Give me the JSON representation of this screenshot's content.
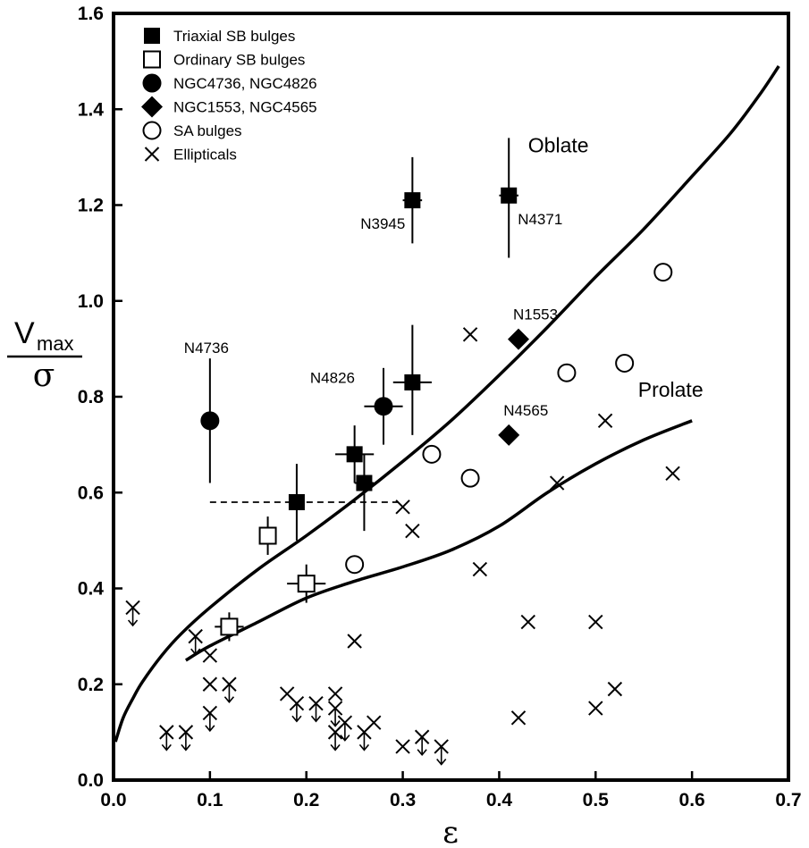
{
  "chart_data": {
    "type": "scatter",
    "title": "",
    "xlabel": "ε",
    "ylabel": {
      "main": "V",
      "subscript": "max",
      "denominator": "σ"
    },
    "xlim": [
      0.0,
      0.7
    ],
    "ylim": [
      0.0,
      1.6
    ],
    "x_ticks": [
      "0.0",
      "0.1",
      "0.2",
      "0.3",
      "0.4",
      "0.5",
      "0.6",
      "0.7"
    ],
    "y_ticks": [
      "0.0",
      "0.2",
      "0.4",
      "0.6",
      "0.8",
      "1.0",
      "1.2",
      "1.4",
      "1.6"
    ],
    "legend_position": "top-left",
    "legend": [
      {
        "marker": "filled-square",
        "label": "Triaxial SB bulges"
      },
      {
        "marker": "open-square",
        "label": "Ordinary SB bulges"
      },
      {
        "marker": "filled-circle",
        "label": "NGC4736, NGC4826"
      },
      {
        "marker": "filled-diamond",
        "label": "NGC1553, NGC4565"
      },
      {
        "marker": "open-circle",
        "label": "SA bulges"
      },
      {
        "marker": "cross",
        "label": "Ellipticals"
      }
    ],
    "curves": [
      {
        "name": "Oblate",
        "label": "Oblate",
        "label_at": [
          0.43,
          1.31
        ],
        "points": [
          [
            0.002,
            0.08
          ],
          [
            0.01,
            0.13
          ],
          [
            0.02,
            0.17
          ],
          [
            0.03,
            0.205
          ],
          [
            0.05,
            0.26
          ],
          [
            0.07,
            0.305
          ],
          [
            0.1,
            0.36
          ],
          [
            0.15,
            0.44
          ],
          [
            0.2,
            0.51
          ],
          [
            0.25,
            0.585
          ],
          [
            0.3,
            0.665
          ],
          [
            0.35,
            0.75
          ],
          [
            0.4,
            0.845
          ],
          [
            0.45,
            0.945
          ],
          [
            0.5,
            1.05
          ],
          [
            0.55,
            1.15
          ],
          [
            0.6,
            1.26
          ],
          [
            0.64,
            1.35
          ],
          [
            0.67,
            1.43
          ],
          [
            0.69,
            1.49
          ]
        ]
      },
      {
        "name": "Prolate",
        "label": "Prolate",
        "label_at": [
          0.544,
          0.8
        ],
        "points": [
          [
            0.075,
            0.25
          ],
          [
            0.1,
            0.28
          ],
          [
            0.15,
            0.33
          ],
          [
            0.2,
            0.38
          ],
          [
            0.25,
            0.415
          ],
          [
            0.3,
            0.445
          ],
          [
            0.35,
            0.48
          ],
          [
            0.4,
            0.53
          ],
          [
            0.45,
            0.6
          ],
          [
            0.5,
            0.66
          ],
          [
            0.55,
            0.71
          ],
          [
            0.6,
            0.75
          ]
        ]
      }
    ],
    "dashed_line": {
      "x": [
        0.1,
        0.3
      ],
      "y": 0.58
    },
    "series": [
      {
        "name": "Triaxial SB bulges",
        "marker": "filled-square",
        "points": [
          {
            "x": 0.31,
            "y": 1.21,
            "xerr": 0.01,
            "yerr": [
              0.09,
              0.09
            ],
            "label": "N3945"
          },
          {
            "x": 0.41,
            "y": 1.22,
            "xerr": 0.01,
            "yerr": [
              0.13,
              0.12
            ],
            "label": "N4371"
          },
          {
            "x": 0.31,
            "y": 0.83,
            "xerr": 0.02,
            "yerr": [
              0.11,
              0.12
            ],
            "label": ""
          },
          {
            "x": 0.25,
            "y": 0.68,
            "xerr": 0.02,
            "yerr": [
              0.06,
              0.06
            ],
            "label": ""
          },
          {
            "x": 0.26,
            "y": 0.62,
            "xerr": 0.01,
            "yerr": [
              0.1,
              0.06
            ],
            "label": ""
          },
          {
            "x": 0.19,
            "y": 0.58,
            "xerr": 0.0,
            "yerr": [
              0.08,
              0.08
            ],
            "label": ""
          }
        ]
      },
      {
        "name": "Ordinary SB bulges",
        "marker": "open-square",
        "points": [
          {
            "x": 0.16,
            "y": 0.51,
            "xerr": 0.0,
            "yerr": [
              0.04,
              0.04
            ]
          },
          {
            "x": 0.2,
            "y": 0.41,
            "xerr": 0.02,
            "yerr": [
              0.04,
              0.04
            ]
          },
          {
            "x": 0.12,
            "y": 0.32,
            "xerr": 0.015,
            "yerr": [
              0.03,
              0.03
            ]
          }
        ]
      },
      {
        "name": "NGC4736, NGC4826",
        "marker": "filled-circle",
        "points": [
          {
            "x": 0.1,
            "y": 0.75,
            "xerr": 0.0,
            "yerr": [
              0.13,
              0.13
            ],
            "label": "N4736"
          },
          {
            "x": 0.28,
            "y": 0.78,
            "xerr": 0.02,
            "yerr": [
              0.08,
              0.08
            ],
            "label": "N4826"
          }
        ]
      },
      {
        "name": "NGC1553, NGC4565",
        "marker": "filled-diamond",
        "points": [
          {
            "x": 0.42,
            "y": 0.92,
            "label": "N1553"
          },
          {
            "x": 0.41,
            "y": 0.72,
            "label": "N4565"
          }
        ]
      },
      {
        "name": "SA bulges",
        "marker": "open-circle",
        "points": [
          {
            "x": 0.57,
            "y": 1.06
          },
          {
            "x": 0.47,
            "y": 0.85
          },
          {
            "x": 0.53,
            "y": 0.87
          },
          {
            "x": 0.33,
            "y": 0.68
          },
          {
            "x": 0.37,
            "y": 0.63
          },
          {
            "x": 0.25,
            "y": 0.45
          }
        ]
      },
      {
        "name": "Ellipticals",
        "marker": "cross",
        "points": [
          {
            "x": 0.37,
            "y": 0.93
          },
          {
            "x": 0.51,
            "y": 0.75
          },
          {
            "x": 0.58,
            "y": 0.64
          },
          {
            "x": 0.46,
            "y": 0.62
          },
          {
            "x": 0.3,
            "y": 0.57
          },
          {
            "x": 0.31,
            "y": 0.52
          },
          {
            "x": 0.38,
            "y": 0.44
          },
          {
            "x": 0.43,
            "y": 0.33
          },
          {
            "x": 0.5,
            "y": 0.33
          },
          {
            "x": 0.25,
            "y": 0.29
          },
          {
            "x": 0.52,
            "y": 0.19
          },
          {
            "x": 0.5,
            "y": 0.15
          },
          {
            "x": 0.42,
            "y": 0.13
          },
          {
            "x": 0.27,
            "y": 0.12
          },
          {
            "x": 0.3,
            "y": 0.07
          },
          {
            "x": 0.02,
            "y": 0.36,
            "upper_limit": true
          },
          {
            "x": 0.085,
            "y": 0.3,
            "upper_limit": true
          },
          {
            "x": 0.1,
            "y": 0.26,
            "upper_limit": false
          },
          {
            "x": 0.1,
            "y": 0.2,
            "upper_limit": false
          },
          {
            "x": 0.12,
            "y": 0.2,
            "upper_limit": true
          },
          {
            "x": 0.1,
            "y": 0.14,
            "upper_limit": true
          },
          {
            "x": 0.18,
            "y": 0.18,
            "upper_limit": false
          },
          {
            "x": 0.19,
            "y": 0.16,
            "upper_limit": true
          },
          {
            "x": 0.21,
            "y": 0.16,
            "upper_limit": true
          },
          {
            "x": 0.23,
            "y": 0.18,
            "upper_limit": false
          },
          {
            "x": 0.23,
            "y": 0.15,
            "upper_limit": true
          },
          {
            "x": 0.24,
            "y": 0.12,
            "upper_limit": true
          },
          {
            "x": 0.23,
            "y": 0.1,
            "upper_limit": true
          },
          {
            "x": 0.26,
            "y": 0.1,
            "upper_limit": true
          },
          {
            "x": 0.32,
            "y": 0.09,
            "upper_limit": true
          },
          {
            "x": 0.34,
            "y": 0.07,
            "upper_limit": true
          },
          {
            "x": 0.055,
            "y": 0.1,
            "upper_limit": true
          },
          {
            "x": 0.075,
            "y": 0.1,
            "upper_limit": true
          }
        ]
      }
    ]
  }
}
